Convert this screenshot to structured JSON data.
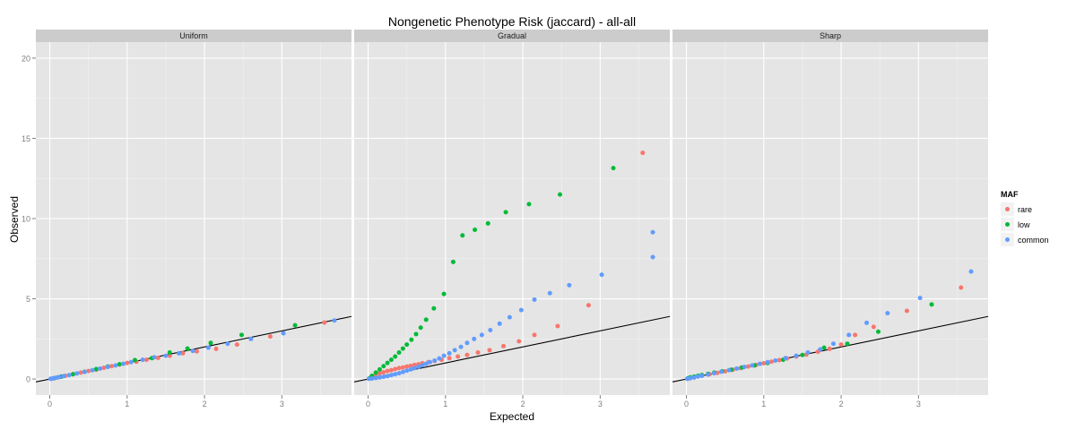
{
  "chart_data": {
    "type": "scatter",
    "title": "Nongenetic Phenotype Risk (jaccard) - all-all",
    "xlabel": "Expected",
    "ylabel": "Observed",
    "xlim": [
      -0.18,
      3.9
    ],
    "ylim": [
      -1.0,
      21.0
    ],
    "x_ticks": [
      0,
      1,
      2,
      3
    ],
    "y_ticks": [
      0,
      5,
      10,
      15,
      20
    ],
    "grid": true,
    "legend": {
      "title": "MAF",
      "position": "right",
      "entries": [
        "rare",
        "low",
        "common"
      ]
    },
    "reference_line": {
      "slope": 1,
      "intercept": 0
    },
    "colors": {
      "rare": "#F8766D",
      "low": "#00BA38",
      "common": "#619CFF",
      "panel_bg": "#E5E5E5",
      "strip_bg": "#CCCCCC",
      "grid": "#FFFFFF"
    },
    "panels": [
      {
        "name": "Uniform",
        "series": [
          {
            "name": "rare",
            "points": [
              [
                0.02,
                0.02
              ],
              [
                0.06,
                0.05
              ],
              [
                0.1,
                0.1
              ],
              [
                0.15,
                0.15
              ],
              [
                0.2,
                0.2
              ],
              [
                0.3,
                0.3
              ],
              [
                0.4,
                0.4
              ],
              [
                0.5,
                0.5
              ],
              [
                0.6,
                0.58
              ],
              [
                0.7,
                0.7
              ],
              [
                0.8,
                0.8
              ],
              [
                0.9,
                0.9
              ],
              [
                1.0,
                1.0
              ],
              [
                1.12,
                1.08
              ],
              [
                1.25,
                1.2
              ],
              [
                1.4,
                1.32
              ],
              [
                1.55,
                1.45
              ],
              [
                1.72,
                1.6
              ],
              [
                1.9,
                1.72
              ],
              [
                2.15,
                1.88
              ],
              [
                2.42,
                2.15
              ],
              [
                2.85,
                2.65
              ],
              [
                3.55,
                3.52
              ]
            ]
          },
          {
            "name": "low",
            "points": [
              [
                0.05,
                0.05
              ],
              [
                0.15,
                0.15
              ],
              [
                0.3,
                0.3
              ],
              [
                0.45,
                0.45
              ],
              [
                0.6,
                0.62
              ],
              [
                0.75,
                0.78
              ],
              [
                0.9,
                0.92
              ],
              [
                1.1,
                1.18
              ],
              [
                1.32,
                1.3
              ],
              [
                1.55,
                1.65
              ],
              [
                1.78,
                1.9
              ],
              [
                2.08,
                2.25
              ],
              [
                2.48,
                2.75
              ],
              [
                3.17,
                3.35
              ]
            ]
          },
          {
            "name": "common",
            "points": [
              [
                0.01,
                0.01
              ],
              [
                0.04,
                0.03
              ],
              [
                0.08,
                0.08
              ],
              [
                0.12,
                0.12
              ],
              [
                0.18,
                0.18
              ],
              [
                0.25,
                0.24
              ],
              [
                0.35,
                0.35
              ],
              [
                0.45,
                0.44
              ],
              [
                0.55,
                0.55
              ],
              [
                0.65,
                0.65
              ],
              [
                0.75,
                0.75
              ],
              [
                0.85,
                0.85
              ],
              [
                0.95,
                0.95
              ],
              [
                1.05,
                1.05
              ],
              [
                1.2,
                1.2
              ],
              [
                1.35,
                1.35
              ],
              [
                1.5,
                1.45
              ],
              [
                1.67,
                1.6
              ],
              [
                1.85,
                1.75
              ],
              [
                2.05,
                1.95
              ],
              [
                2.3,
                2.2
              ],
              [
                2.6,
                2.5
              ],
              [
                3.02,
                2.85
              ],
              [
                3.68,
                3.65
              ]
            ]
          }
        ]
      },
      {
        "name": "Gradual",
        "series": [
          {
            "name": "rare",
            "points": [
              [
                0.02,
                0.05
              ],
              [
                0.06,
                0.15
              ],
              [
                0.1,
                0.25
              ],
              [
                0.15,
                0.35
              ],
              [
                0.2,
                0.42
              ],
              [
                0.25,
                0.5
              ],
              [
                0.3,
                0.55
              ],
              [
                0.35,
                0.62
              ],
              [
                0.4,
                0.68
              ],
              [
                0.45,
                0.72
              ],
              [
                0.5,
                0.78
              ],
              [
                0.55,
                0.82
              ],
              [
                0.6,
                0.88
              ],
              [
                0.65,
                0.92
              ],
              [
                0.7,
                0.98
              ],
              [
                0.78,
                1.05
              ],
              [
                0.86,
                1.12
              ],
              [
                0.95,
                1.2
              ],
              [
                1.05,
                1.3
              ],
              [
                1.16,
                1.4
              ],
              [
                1.28,
                1.5
              ],
              [
                1.42,
                1.65
              ],
              [
                1.57,
                1.8
              ],
              [
                1.75,
                2.05
              ],
              [
                1.95,
                2.35
              ],
              [
                2.15,
                2.75
              ],
              [
                2.45,
                3.3
              ],
              [
                2.85,
                4.6
              ],
              [
                3.55,
                14.1
              ]
            ]
          },
          {
            "name": "low",
            "points": [
              [
                0.02,
                0.05
              ],
              [
                0.05,
                0.2
              ],
              [
                0.1,
                0.4
              ],
              [
                0.15,
                0.6
              ],
              [
                0.2,
                0.8
              ],
              [
                0.25,
                1.0
              ],
              [
                0.3,
                1.2
              ],
              [
                0.35,
                1.4
              ],
              [
                0.4,
                1.65
              ],
              [
                0.45,
                1.9
              ],
              [
                0.5,
                2.15
              ],
              [
                0.56,
                2.45
              ],
              [
                0.62,
                2.8
              ],
              [
                0.68,
                3.2
              ],
              [
                0.75,
                3.7
              ],
              [
                0.85,
                4.4
              ],
              [
                0.98,
                5.3
              ],
              [
                1.1,
                7.3
              ],
              [
                1.22,
                8.95
              ],
              [
                1.38,
                9.3
              ],
              [
                1.55,
                9.7
              ],
              [
                1.78,
                10.4
              ],
              [
                2.08,
                10.9
              ],
              [
                2.48,
                11.5
              ],
              [
                3.17,
                13.15
              ]
            ]
          },
          {
            "name": "common",
            "points": [
              [
                0.01,
                0.01
              ],
              [
                0.05,
                0.03
              ],
              [
                0.1,
                0.06
              ],
              [
                0.15,
                0.1
              ],
              [
                0.2,
                0.14
              ],
              [
                0.25,
                0.18
              ],
              [
                0.3,
                0.24
              ],
              [
                0.35,
                0.3
              ],
              [
                0.4,
                0.36
              ],
              [
                0.45,
                0.44
              ],
              [
                0.5,
                0.52
              ],
              [
                0.55,
                0.6
              ],
              [
                0.6,
                0.68
              ],
              [
                0.65,
                0.76
              ],
              [
                0.7,
                0.85
              ],
              [
                0.75,
                0.95
              ],
              [
                0.8,
                1.05
              ],
              [
                0.86,
                1.15
              ],
              [
                0.92,
                1.28
              ],
              [
                0.98,
                1.45
              ],
              [
                1.05,
                1.6
              ],
              [
                1.12,
                1.8
              ],
              [
                1.2,
                2.0
              ],
              [
                1.28,
                2.25
              ],
              [
                1.37,
                2.5
              ],
              [
                1.47,
                2.75
              ],
              [
                1.58,
                3.05
              ],
              [
                1.7,
                3.45
              ],
              [
                1.83,
                3.85
              ],
              [
                1.98,
                4.3
              ],
              [
                2.15,
                4.95
              ],
              [
                2.35,
                5.35
              ],
              [
                2.6,
                5.85
              ],
              [
                3.02,
                6.5
              ],
              [
                3.68,
                7.6
              ],
              [
                3.68,
                9.15
              ]
            ]
          }
        ]
      },
      {
        "name": "Sharp",
        "series": [
          {
            "name": "rare",
            "points": [
              [
                0.02,
                0.02
              ],
              [
                0.1,
                0.1
              ],
              [
                0.2,
                0.2
              ],
              [
                0.3,
                0.3
              ],
              [
                0.4,
                0.38
              ],
              [
                0.5,
                0.48
              ],
              [
                0.6,
                0.58
              ],
              [
                0.7,
                0.68
              ],
              [
                0.8,
                0.78
              ],
              [
                0.9,
                0.88
              ],
              [
                1.0,
                0.98
              ],
              [
                1.1,
                1.08
              ],
              [
                1.2,
                1.18
              ],
              [
                1.3,
                1.28
              ],
              [
                1.42,
                1.4
              ],
              [
                1.55,
                1.52
              ],
              [
                1.7,
                1.7
              ],
              [
                1.85,
                1.88
              ],
              [
                2.0,
                2.15
              ],
              [
                2.18,
                2.75
              ],
              [
                2.42,
                3.25
              ],
              [
                2.85,
                4.25
              ],
              [
                3.55,
                5.7
              ]
            ]
          },
          {
            "name": "low",
            "points": [
              [
                0.02,
                0.05
              ],
              [
                0.05,
                0.1
              ],
              [
                0.1,
                0.15
              ],
              [
                0.15,
                0.2
              ],
              [
                0.2,
                0.25
              ],
              [
                0.28,
                0.32
              ],
              [
                0.36,
                0.4
              ],
              [
                0.46,
                0.48
              ],
              [
                0.58,
                0.58
              ],
              [
                0.72,
                0.72
              ],
              [
                0.88,
                0.85
              ],
              [
                1.05,
                1.0
              ],
              [
                1.25,
                1.2
              ],
              [
                1.5,
                1.5
              ],
              [
                1.78,
                1.95
              ],
              [
                2.08,
                2.2
              ],
              [
                2.48,
                2.95
              ],
              [
                3.17,
                4.65
              ]
            ]
          },
          {
            "name": "common",
            "points": [
              [
                0.01,
                0.01
              ],
              [
                0.05,
                0.05
              ],
              [
                0.1,
                0.1
              ],
              [
                0.15,
                0.15
              ],
              [
                0.2,
                0.2
              ],
              [
                0.28,
                0.28
              ],
              [
                0.36,
                0.36
              ],
              [
                0.45,
                0.45
              ],
              [
                0.55,
                0.55
              ],
              [
                0.65,
                0.65
              ],
              [
                0.75,
                0.75
              ],
              [
                0.85,
                0.85
              ],
              [
                0.95,
                0.95
              ],
              [
                1.05,
                1.05
              ],
              [
                1.15,
                1.15
              ],
              [
                1.28,
                1.3
              ],
              [
                1.42,
                1.45
              ],
              [
                1.57,
                1.65
              ],
              [
                1.73,
                1.85
              ],
              [
                1.9,
                2.2
              ],
              [
                2.1,
                2.75
              ],
              [
                2.33,
                3.5
              ],
              [
                2.6,
                4.1
              ],
              [
                3.02,
                5.05
              ],
              [
                3.68,
                6.7
              ]
            ]
          }
        ]
      }
    ]
  }
}
